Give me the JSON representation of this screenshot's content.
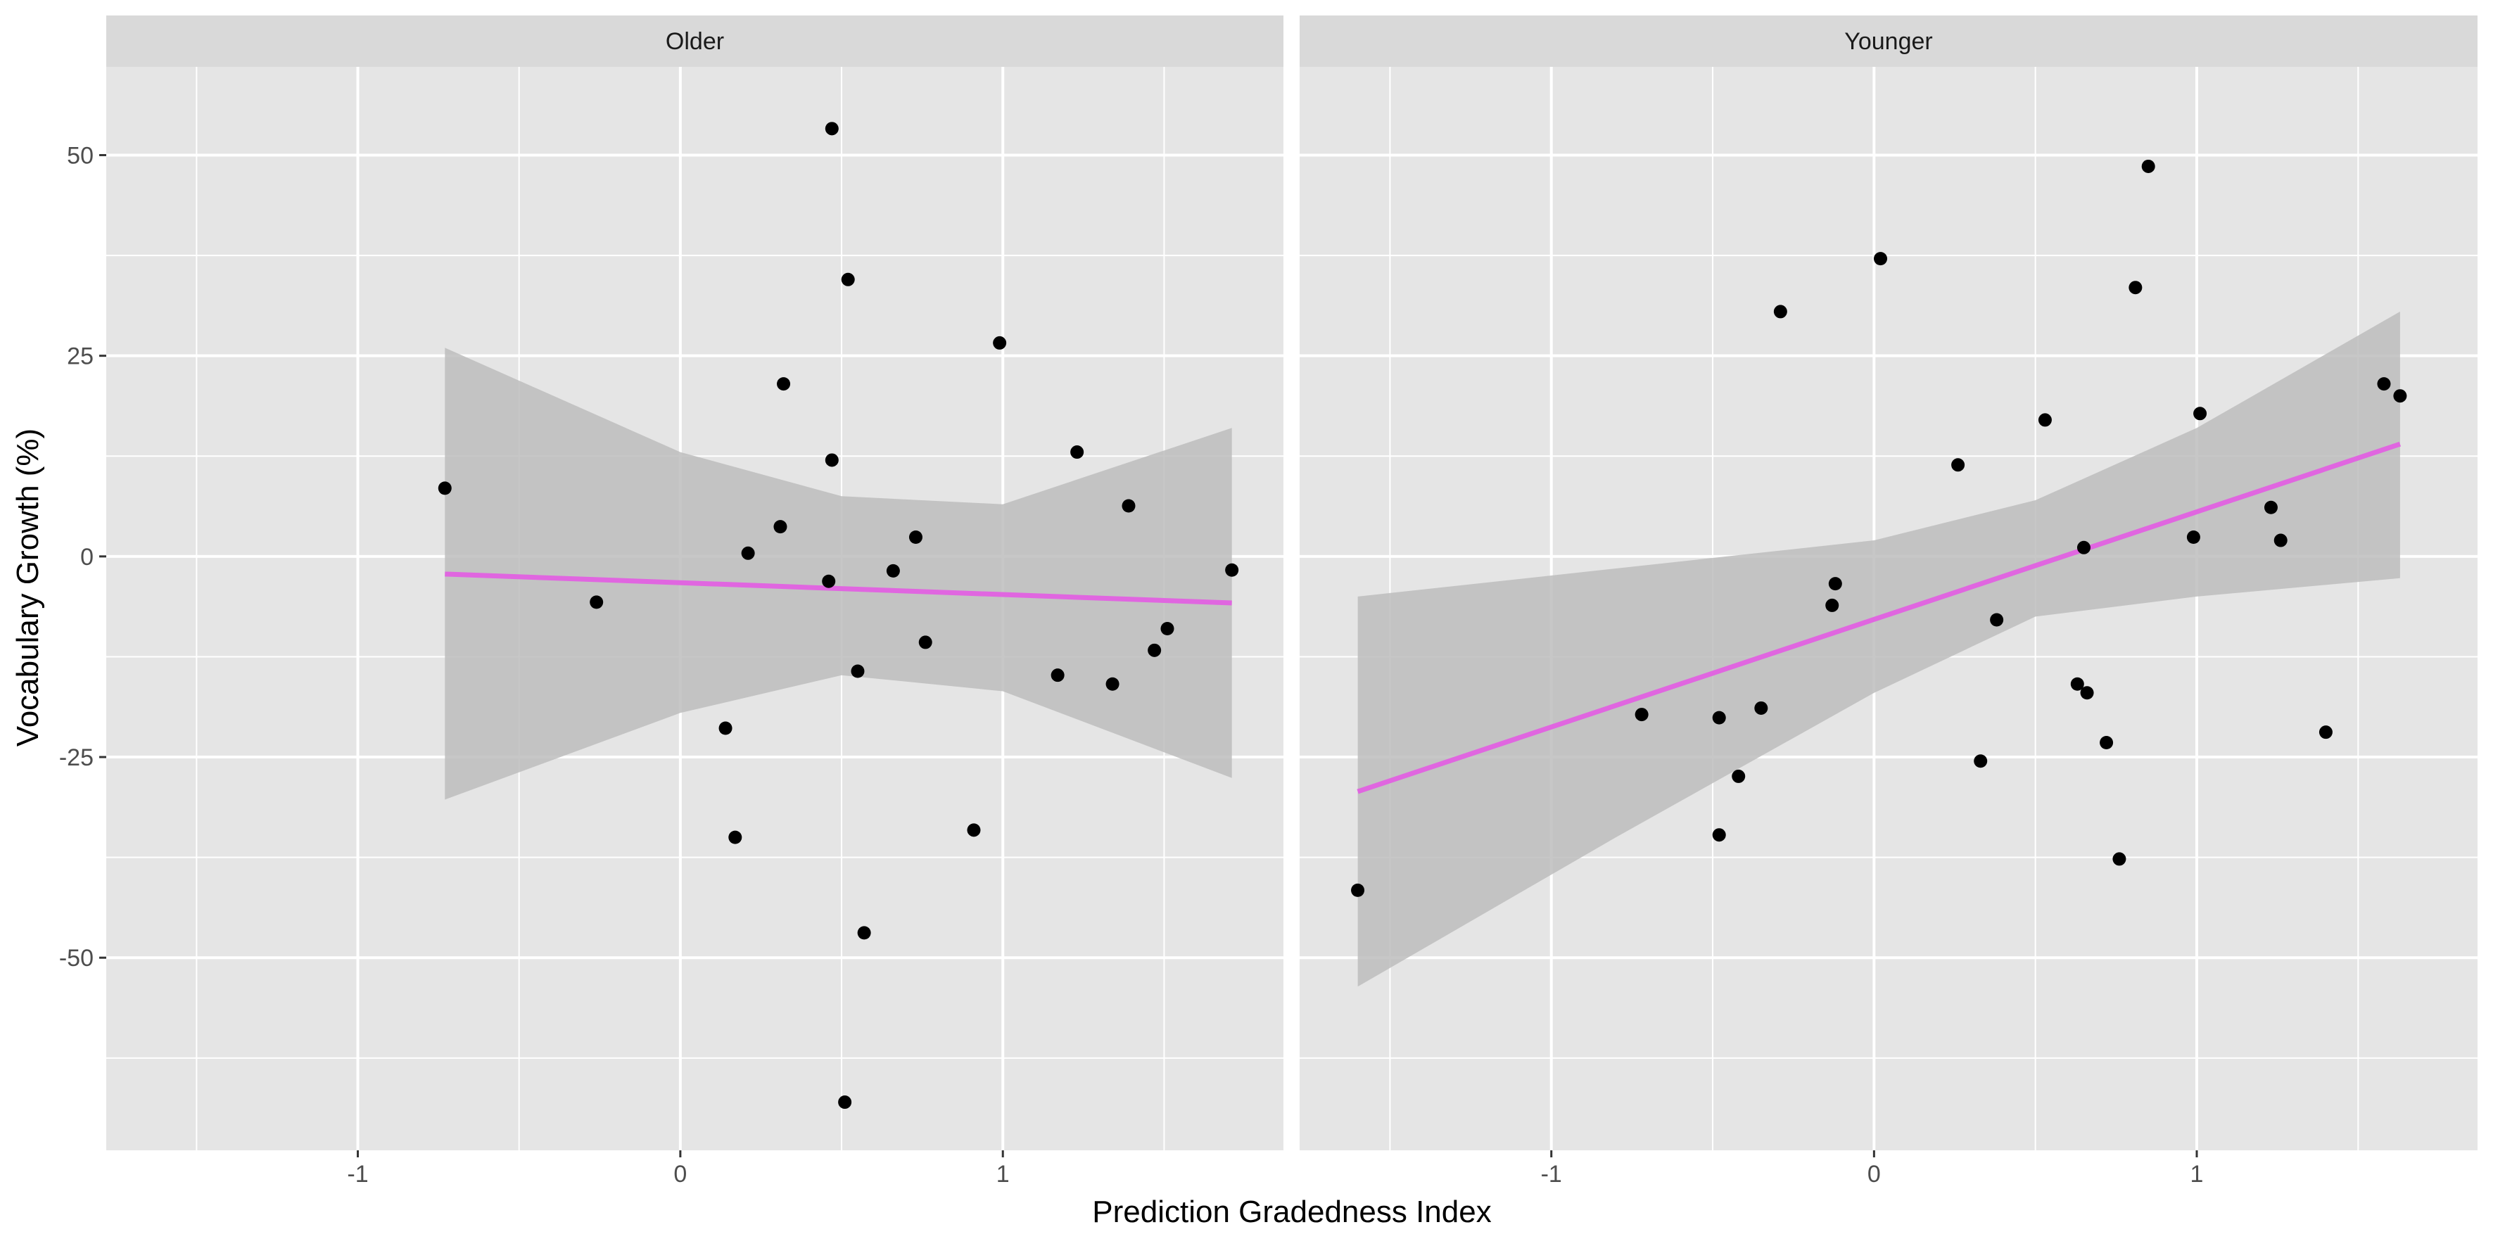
{
  "chart_data": {
    "type": "scatter",
    "facet_labels": [
      "Older",
      "Younger"
    ],
    "xlabel": "Prediction Gradedness Index",
    "ylabel": "Vocabulary Growth (%)",
    "x_ticks": [
      -1,
      0,
      1
    ],
    "y_ticks": [
      50,
      25,
      0,
      -25,
      -50
    ],
    "xlim": [
      -1.78,
      1.87
    ],
    "ylim": [
      -74,
      61
    ],
    "grid": true,
    "colors": {
      "panel_bg": "#e5e5e5",
      "strip_bg": "#d9d9d9",
      "grid": "#ffffff",
      "points": "#000000",
      "ribbon": "#bdbdbd",
      "fit_line": "#e066e0"
    },
    "panels": [
      {
        "facet": "Older",
        "points": [
          {
            "x": -0.73,
            "y": 8.5
          },
          {
            "x": -0.26,
            "y": -5.7
          },
          {
            "x": 0.14,
            "y": -21.4
          },
          {
            "x": 0.17,
            "y": -35.0
          },
          {
            "x": 0.21,
            "y": 0.4
          },
          {
            "x": 0.31,
            "y": 3.7
          },
          {
            "x": 0.32,
            "y": 21.5
          },
          {
            "x": 0.46,
            "y": -3.1
          },
          {
            "x": 0.47,
            "y": 12.0
          },
          {
            "x": 0.47,
            "y": 53.3
          },
          {
            "x": 0.51,
            "y": -68.0
          },
          {
            "x": 0.52,
            "y": 34.5
          },
          {
            "x": 0.55,
            "y": -14.3
          },
          {
            "x": 0.57,
            "y": -46.9
          },
          {
            "x": 0.66,
            "y": -1.8
          },
          {
            "x": 0.73,
            "y": 2.4
          },
          {
            "x": 0.76,
            "y": -10.7
          },
          {
            "x": 0.91,
            "y": -34.1
          },
          {
            "x": 0.99,
            "y": 26.6
          },
          {
            "x": 1.17,
            "y": -14.8
          },
          {
            "x": 1.23,
            "y": 13.0
          },
          {
            "x": 1.34,
            "y": -15.9
          },
          {
            "x": 1.39,
            "y": 6.3
          },
          {
            "x": 1.47,
            "y": -11.7
          },
          {
            "x": 1.51,
            "y": -9.0
          },
          {
            "x": 1.71,
            "y": -1.7
          }
        ],
        "fit": {
          "x": [
            -0.73,
            1.71
          ],
          "y": [
            -2.2,
            -5.8
          ],
          "ribbon_x": [
            -0.73,
            0.0,
            0.5,
            1.0,
            1.71
          ],
          "ribbon_upper": [
            26.0,
            13.0,
            7.5,
            6.5,
            16.0
          ],
          "ribbon_lower": [
            -30.3,
            -19.5,
            -14.8,
            -16.8,
            -27.6
          ]
        }
      },
      {
        "facet": "Younger",
        "points": [
          {
            "x": -1.6,
            "y": -41.6
          },
          {
            "x": -0.72,
            "y": -19.7
          },
          {
            "x": -0.48,
            "y": -34.7
          },
          {
            "x": -0.48,
            "y": -20.1
          },
          {
            "x": -0.42,
            "y": -27.4
          },
          {
            "x": -0.35,
            "y": -18.9
          },
          {
            "x": -0.29,
            "y": 30.5
          },
          {
            "x": -0.13,
            "y": -6.1
          },
          {
            "x": -0.12,
            "y": -3.4
          },
          {
            "x": 0.02,
            "y": 37.1
          },
          {
            "x": 0.26,
            "y": 11.4
          },
          {
            "x": 0.33,
            "y": -25.5
          },
          {
            "x": 0.38,
            "y": -7.9
          },
          {
            "x": 0.53,
            "y": 17.0
          },
          {
            "x": 0.63,
            "y": -15.9
          },
          {
            "x": 0.65,
            "y": 1.1
          },
          {
            "x": 0.66,
            "y": -17.0
          },
          {
            "x": 0.72,
            "y": -23.2
          },
          {
            "x": 0.76,
            "y": -37.7
          },
          {
            "x": 0.81,
            "y": 33.5
          },
          {
            "x": 0.85,
            "y": 48.6
          },
          {
            "x": 0.99,
            "y": 2.4
          },
          {
            "x": 1.01,
            "y": 17.8
          },
          {
            "x": 1.23,
            "y": 6.1
          },
          {
            "x": 1.26,
            "y": 2.0
          },
          {
            "x": 1.4,
            "y": -21.9
          },
          {
            "x": 1.58,
            "y": 21.5
          },
          {
            "x": 1.63,
            "y": 20.0
          }
        ],
        "fit": {
          "x": [
            -1.6,
            1.63
          ],
          "y": [
            -29.3,
            14.0
          ],
          "ribbon_x": [
            -1.6,
            -0.8,
            0.0,
            0.5,
            1.0,
            1.63
          ],
          "ribbon_upper": [
            -5.0,
            -1.5,
            2.0,
            7.0,
            16.0,
            30.5
          ],
          "ribbon_lower": [
            -53.6,
            -35.0,
            -17.0,
            -7.5,
            -5.0,
            -2.7
          ]
        }
      }
    ]
  }
}
